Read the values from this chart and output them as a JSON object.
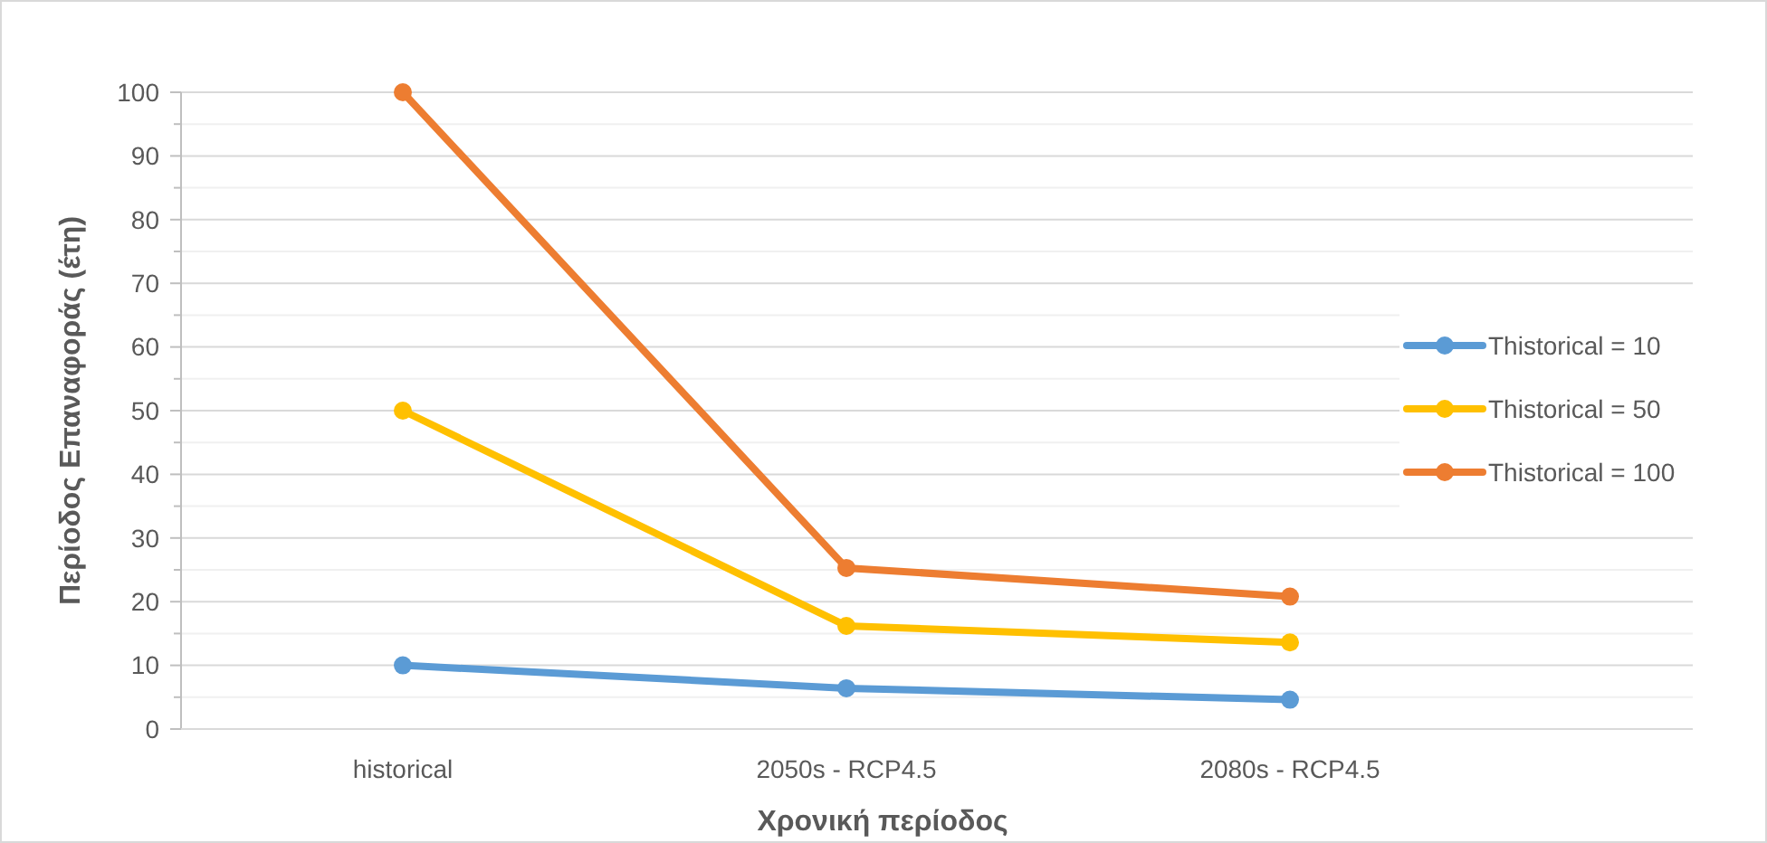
{
  "chart_data": {
    "type": "line",
    "xlabel": "Χρονική περίοδος",
    "ylabel": "Περίοδος Επαναφοράς (έτη)",
    "categories": [
      "historical",
      "2050s - RCP4.5",
      "2080s - RCP4.5"
    ],
    "series": [
      {
        "name": "Thistorical = 10",
        "color": "#5b9bd5",
        "values": [
          10,
          6.4,
          4.6
        ]
      },
      {
        "name": "Thistorical = 50",
        "color": "#ffc000",
        "values": [
          50,
          16.2,
          13.6
        ]
      },
      {
        "name": "Thistorical = 100",
        "color": "#ed7d31",
        "values": [
          100,
          25.3,
          20.8
        ]
      }
    ],
    "ylim": [
      0,
      100
    ],
    "yticks": [
      0,
      {
        "value": 5,
        "label": null
      },
      10,
      {
        "value": 15,
        "label": null
      },
      20,
      {
        "value": 25,
        "label": null
      },
      30,
      {
        "value": 35,
        "label": null
      },
      40,
      {
        "value": 45,
        "label": null
      },
      50,
      {
        "value": 55,
        "label": null
      },
      60,
      {
        "value": 65,
        "label": null
      },
      70,
      {
        "value": 75,
        "label": null
      },
      80,
      {
        "value": 85,
        "label": null
      },
      90,
      {
        "value": 95,
        "label": null
      },
      100
    ],
    "grid": "y",
    "legend": "right",
    "marker": "circle",
    "line_style": "solid"
  }
}
